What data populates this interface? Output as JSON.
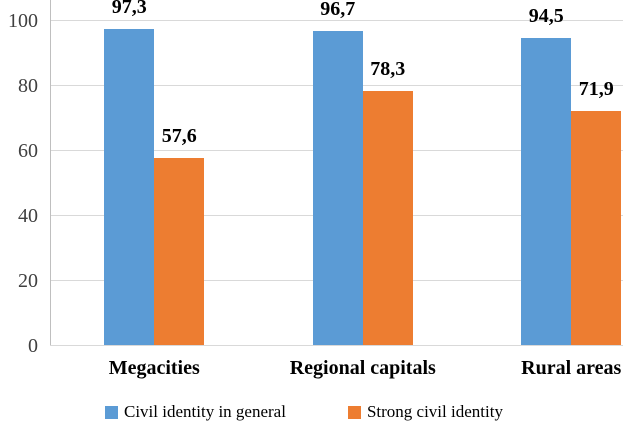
{
  "chart_data": {
    "type": "bar",
    "categories": [
      "Megacities",
      "Regional capitals",
      "Rural areas"
    ],
    "series": [
      {
        "name": "Civil identity in general",
        "color": "#5B9BD5",
        "values": [
          97.3,
          96.7,
          94.5
        ],
        "value_labels": [
          "97,3",
          "96,7",
          "94,5"
        ]
      },
      {
        "name": "Strong civil identity",
        "color": "#ED7D31",
        "values": [
          57.6,
          78.3,
          71.9
        ],
        "value_labels": [
          "57,6",
          "78,3",
          "71,9"
        ]
      }
    ],
    "title": "",
    "xlabel": "",
    "ylabel": "",
    "y_axis": {
      "min": 0,
      "max": 100,
      "step": 20,
      "tick_labels": [
        "0",
        "20",
        "40",
        "60",
        "80",
        "100"
      ]
    },
    "grid": true,
    "legend_position": "bottom",
    "colors": {
      "gridline": "#d9d9d9",
      "axis_line": "#bfbfbf",
      "tick_text": "#404040",
      "label_text": "#000000",
      "background": "#ffffff"
    }
  }
}
